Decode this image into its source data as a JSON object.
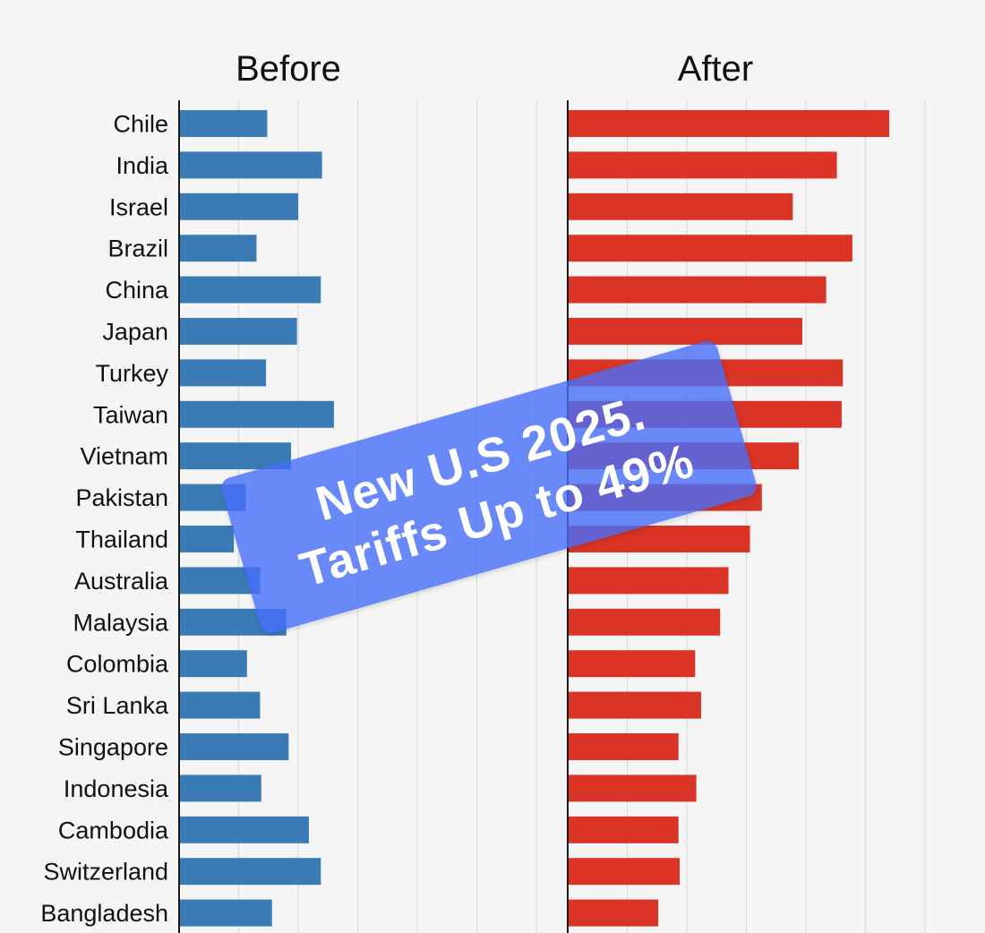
{
  "chart_data": {
    "type": "bar",
    "orientation": "horizontal",
    "categories": [
      "Chile",
      "India",
      "Israel",
      "Brazil",
      "China",
      "Japan",
      "Turkey",
      "Taiwan",
      "Vietnam",
      "Pakistan",
      "Thailand",
      "Australia",
      "Malaysia",
      "Colombia",
      "Sri Lanka",
      "Singapore",
      "Indonesia",
      "Cambodia",
      "Switzerland",
      "Bangladesh"
    ],
    "panels": [
      {
        "title": "Before",
        "color": "#3a7bb5",
        "values": [
          7.4,
          12.0,
          10.0,
          6.5,
          11.9,
          9.9,
          7.3,
          13.0,
          9.4,
          5.6,
          4.6,
          6.8,
          9.0,
          5.7,
          6.8,
          9.2,
          6.9,
          10.9,
          11.9,
          7.8
        ],
        "xlim": [
          0,
          30
        ],
        "gridlines": [
          0,
          5,
          10,
          15,
          20,
          25,
          30
        ]
      },
      {
        "title": "After",
        "color": "#d93425",
        "values": [
          27.0,
          22.6,
          18.9,
          23.9,
          21.7,
          19.7,
          23.1,
          23.0,
          19.4,
          16.3,
          15.3,
          13.5,
          12.8,
          10.7,
          11.2,
          9.3,
          10.8,
          9.3,
          9.4,
          7.6
        ],
        "xlim": [
          0,
          30
        ],
        "gridlines": [
          0,
          5,
          10,
          15,
          20,
          25,
          30
        ]
      }
    ]
  },
  "overlay": {
    "line1": "New U.S 2025.",
    "line2": "Tariffs Up to 49%",
    "color": "#466efa"
  }
}
